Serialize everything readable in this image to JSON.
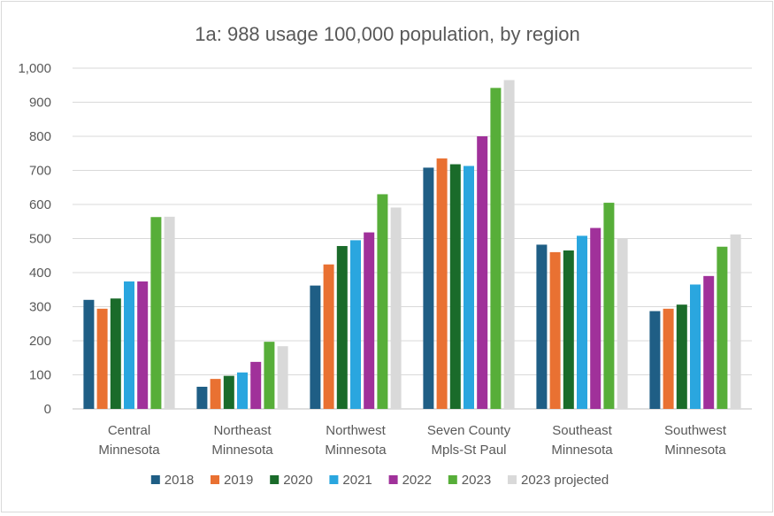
{
  "chart_data": {
    "type": "bar",
    "title": "1a: 988 usage 100,000 population, by region",
    "xlabel": "",
    "ylabel": "",
    "ylim": [
      0,
      1000
    ],
    "yticks": [
      0,
      100,
      200,
      300,
      400,
      500,
      600,
      700,
      800,
      900,
      1000
    ],
    "ytick_labels": [
      "0",
      "100",
      "200",
      "300",
      "400",
      "500",
      "600",
      "700",
      "800",
      "900",
      "1,000"
    ],
    "categories": [
      [
        "Central",
        "Minnesota"
      ],
      [
        "Northeast",
        "Minnesota"
      ],
      [
        "Northwest",
        "Minnesota"
      ],
      [
        "Seven County",
        "Mpls-St Paul"
      ],
      [
        "Southeast",
        "Minnesota"
      ],
      [
        "Southwest",
        "Minnesota"
      ]
    ],
    "grid": true,
    "legend_position": "bottom",
    "series": [
      {
        "name": "2018",
        "color": "#1f5e85",
        "values": [
          320,
          65,
          362,
          708,
          482,
          287
        ]
      },
      {
        "name": "2019",
        "color": "#e97132",
        "values": [
          294,
          88,
          424,
          735,
          460,
          294
        ]
      },
      {
        "name": "2020",
        "color": "#1a6b2a",
        "values": [
          324,
          97,
          478,
          718,
          465,
          306
        ]
      },
      {
        "name": "2021",
        "color": "#2aa6df",
        "values": [
          374,
          107,
          495,
          713,
          508,
          365
        ]
      },
      {
        "name": "2022",
        "color": "#a0319a",
        "values": [
          374,
          138,
          518,
          800,
          531,
          390
        ]
      },
      {
        "name": "2023",
        "color": "#57ae39",
        "values": [
          563,
          197,
          630,
          942,
          605,
          476
        ]
      },
      {
        "name": "2023 projected",
        "color": "#d9d9d9",
        "values": [
          564,
          184,
          591,
          965,
          500,
          512
        ]
      }
    ]
  }
}
